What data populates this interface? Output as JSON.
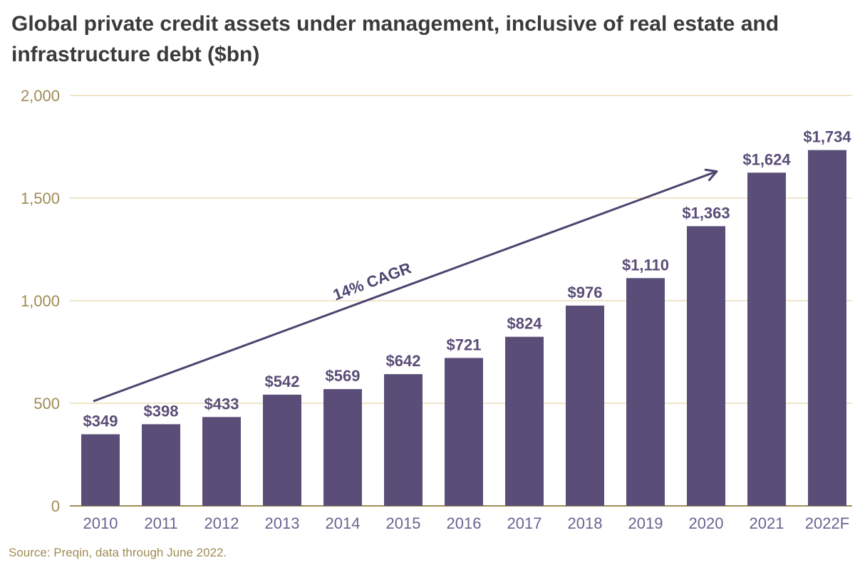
{
  "chart_data": {
    "type": "bar",
    "title": "Global private credit assets under management, inclusive of real estate and infrastructure debt ($bn)",
    "categories": [
      "2010",
      "2011",
      "2012",
      "2013",
      "2014",
      "2015",
      "2016",
      "2017",
      "2018",
      "2019",
      "2020",
      "2021",
      "2022F"
    ],
    "values": [
      349,
      398,
      433,
      542,
      569,
      642,
      721,
      824,
      976,
      1110,
      1363,
      1624,
      1734
    ],
    "value_labels": [
      "$349",
      "$398",
      "$433",
      "$542",
      "$569",
      "$642",
      "$721",
      "$824",
      "$976",
      "$1,110",
      "$1,363",
      "$1,624",
      "$1,734"
    ],
    "ylim": [
      0,
      2000
    ],
    "y_ticks": [
      0,
      500,
      1000,
      1500,
      2000
    ],
    "y_tick_labels": [
      "0",
      "500",
      "1,000",
      "1,500",
      "2,000"
    ],
    "xlabel": "",
    "ylabel": "",
    "grid": true,
    "annotation": {
      "text": "14% CAGR",
      "from": {
        "category": "2010",
        "value": 510
      },
      "to": {
        "category": "2021",
        "value": 1630
      }
    },
    "source": "Source: Preqin, data through June 2022."
  },
  "colors": {
    "bar": "#5a4e78",
    "gridline": "#e8ddb8",
    "axis": "#a08c55",
    "title": "#3a3a3a",
    "tick_label": "#a08c55",
    "arrow": "#4e4470"
  }
}
